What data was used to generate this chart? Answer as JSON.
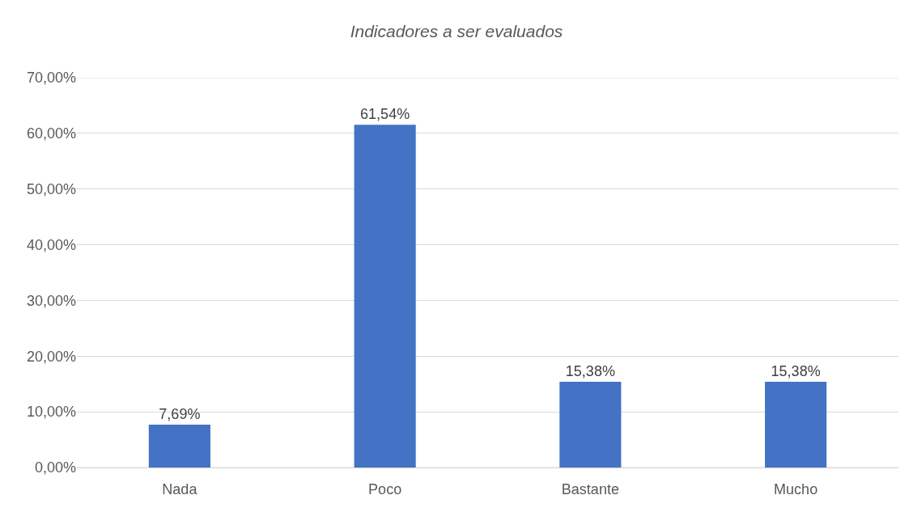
{
  "chart_data": {
    "type": "bar",
    "title": "Indicadores a ser evaluados",
    "categories": [
      "Nada",
      "Poco",
      "Bastante",
      "Mucho"
    ],
    "values": [
      7.69,
      61.54,
      15.38,
      15.38
    ],
    "value_labels": [
      "7,69%",
      "61,54%",
      "15,38%",
      "15,38%"
    ],
    "color": "#4472c4",
    "ylim": [
      0,
      70
    ],
    "yticks": [
      {
        "value": 0,
        "label": "0,00%"
      },
      {
        "value": 10,
        "label": "10,00%"
      },
      {
        "value": 20,
        "label": "20,00%"
      },
      {
        "value": 30,
        "label": "30,00%"
      },
      {
        "value": 40,
        "label": "40,00%"
      },
      {
        "value": 50,
        "label": "50,00%"
      },
      {
        "value": 60,
        "label": "60,00%"
      },
      {
        "value": 70,
        "label": "70,00%"
      }
    ],
    "grid": "y"
  }
}
